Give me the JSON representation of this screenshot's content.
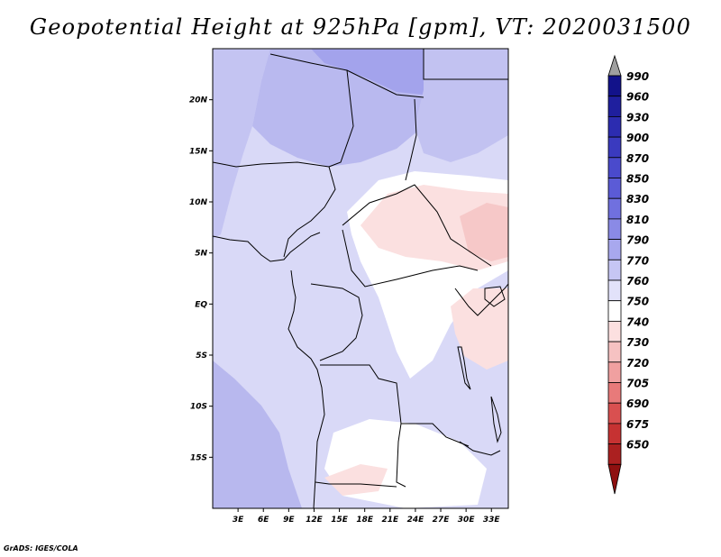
{
  "title": "Geopotential Height at 925hPa [gpm], VT: 2020031500",
  "credit": "GrADS: IGES/COLA",
  "map": {
    "lon_range": [
      0,
      35
    ],
    "lat_range": [
      -20,
      25
    ],
    "x_ticks": [
      "3E",
      "6E",
      "9E",
      "12E",
      "15E",
      "18E",
      "21E",
      "24E",
      "27E",
      "30E",
      "33E"
    ],
    "y_ticks": [
      "20N",
      "15N",
      "10N",
      "5N",
      "EQ",
      "5S",
      "10S",
      "15S"
    ]
  },
  "colorbar": {
    "levels": [
      "990",
      "960",
      "930",
      "900",
      "870",
      "850",
      "830",
      "810",
      "790",
      "770",
      "760",
      "750",
      "740",
      "730",
      "720",
      "705",
      "690",
      "675",
      "650"
    ],
    "colors": [
      "#12128a",
      "#1f1f9e",
      "#2c2cb0",
      "#3a3abf",
      "#4a4acc",
      "#5b5bd6",
      "#7070df",
      "#8a8ae6",
      "#a8a8ee",
      "#c6c6f4",
      "#e2e2fa",
      "#ffffff",
      "#fce0e0",
      "#f6c2c2",
      "#f0a0a0",
      "#e87a7a",
      "#d95050",
      "#c63232",
      "#ab2020",
      "#8f1010"
    ],
    "top_cap_color": "#a0a0a0"
  }
}
